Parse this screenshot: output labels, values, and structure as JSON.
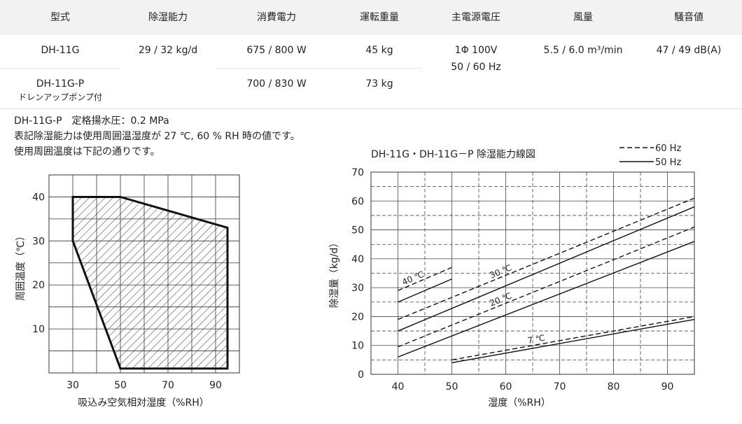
{
  "spec_table": {
    "headers": [
      "型式",
      "除湿能力",
      "消費電力",
      "運転重量",
      "主電源電圧",
      "風量",
      "騒音値"
    ],
    "rows": [
      {
        "model": "DH-11G",
        "model_note": "",
        "dehumid": "29 / 32 kg/d",
        "power": "675 / 800 W",
        "weight": "45 kg",
        "voltage": "1Φ 100V",
        "voltage_freq": "50 / 60 Hz",
        "airflow": "5.5 / 6.0 m³/min",
        "noise": "47 / 49 dB(A)"
      },
      {
        "model": "DH-11G-P",
        "model_note": "ドレンアップポンプ付",
        "power": "700 / 830 W",
        "weight": "73 kg"
      }
    ]
  },
  "notes": [
    "DH-11G-P　定格揚水圧：0.2 MPa",
    "表記除湿能力は使用周囲温湿度が 27 ℃, 60 % RH 時の値です。",
    "使用周囲温度は下記の通りです。"
  ],
  "chart_data": [
    {
      "type": "area",
      "xlabel": "吸込み空気相対湿度（%RH）",
      "ylabel": "周囲温度（℃）",
      "xlim": [
        20,
        100
      ],
      "ylim": [
        0,
        45
      ],
      "x_ticks": [
        30,
        50,
        70,
        90
      ],
      "y_ticks": [
        10,
        20,
        30,
        40
      ],
      "grid": true,
      "hatched": true,
      "polygon": [
        [
          30,
          40
        ],
        [
          50,
          40
        ],
        [
          95,
          33
        ],
        [
          95,
          1
        ],
        [
          50,
          1
        ],
        [
          30,
          30
        ]
      ]
    },
    {
      "type": "line",
      "title": "DH-11G・DH-11G－P 除湿能力線図",
      "xlabel": "湿度（%RH）",
      "ylabel": "除湿量（kg/d）",
      "xlim": [
        35,
        95
      ],
      "ylim": [
        0,
        70
      ],
      "x_ticks": [
        40,
        50,
        60,
        70,
        80,
        90
      ],
      "y_ticks": [
        0,
        10,
        20,
        30,
        40,
        50,
        60,
        70
      ],
      "grid": true,
      "legend": [
        {
          "label": "60 Hz",
          "dash": true
        },
        {
          "label": "50 Hz",
          "dash": false
        }
      ],
      "series": [
        {
          "label": "40 ℃",
          "freq": "60 Hz",
          "points": [
            [
              40,
              29
            ],
            [
              50,
              37
            ]
          ]
        },
        {
          "label": "",
          "freq": "50 Hz",
          "points": [
            [
              40,
              25
            ],
            [
              50,
              33
            ]
          ]
        },
        {
          "label": "30 ℃",
          "freq": "60 Hz",
          "points": [
            [
              40,
              19
            ],
            [
              95,
              61
            ]
          ]
        },
        {
          "label": "",
          "freq": "50 Hz",
          "points": [
            [
              40,
              15
            ],
            [
              95,
              58
            ]
          ]
        },
        {
          "label": "20 ℃",
          "freq": "60 Hz",
          "points": [
            [
              40,
              9.5
            ],
            [
              95,
              51
            ]
          ]
        },
        {
          "label": "",
          "freq": "50 Hz",
          "points": [
            [
              40,
              6
            ],
            [
              95,
              46
            ]
          ]
        },
        {
          "label": "7 ℃",
          "freq": "60 Hz",
          "points": [
            [
              50,
              5
            ],
            [
              95,
              20
            ]
          ]
        },
        {
          "label": "",
          "freq": "50 Hz",
          "points": [
            [
              50,
              4
            ],
            [
              95,
              19
            ]
          ]
        }
      ]
    }
  ]
}
